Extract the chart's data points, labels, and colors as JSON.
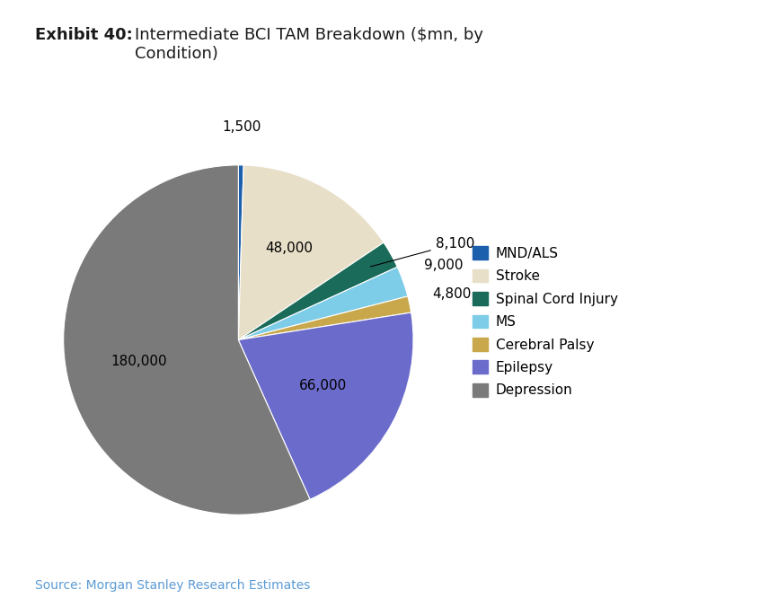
{
  "title_bold": "Exhibit 40:",
  "title_regular": "Intermediate BCI TAM Breakdown ($mn, by\nCondition)",
  "source": "Source: Morgan Stanley Research Estimates",
  "labels": [
    "MND/ALS",
    "Stroke",
    "Spinal Cord Injury",
    "MS",
    "Cerebral Palsy",
    "Epilepsy",
    "Depression"
  ],
  "values": [
    1500,
    48000,
    8100,
    9000,
    4800,
    66000,
    180000
  ],
  "colors": [
    "#1b5fad",
    "#e8dfc8",
    "#1a6b5a",
    "#7ecde8",
    "#c8a84b",
    "#6b6bcc",
    "#7a7a7a"
  ],
  "slice_labels": [
    "1,500",
    "48,000",
    "8,100",
    "9,000",
    "4,800",
    "66,000",
    "180,000"
  ],
  "background_color": "#ffffff",
  "title_bold_fontsize": 13,
  "title_regular_fontsize": 13,
  "legend_fontsize": 11,
  "label_fontsize": 11,
  "source_fontsize": 10,
  "source_color": "#5b9bd5"
}
